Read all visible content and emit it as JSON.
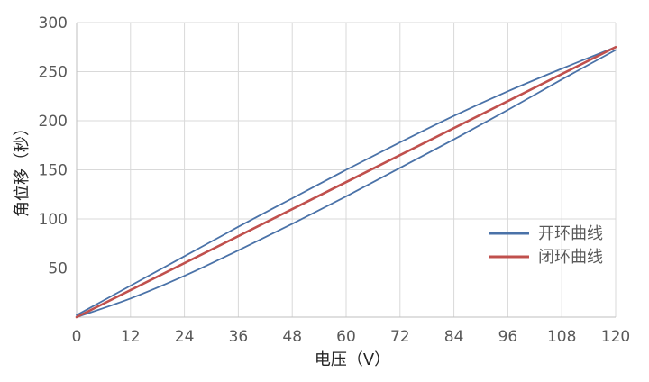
{
  "chart_data": {
    "type": "line",
    "xlabel": "电压（V）",
    "ylabel": "角位移（秒）",
    "xlim": [
      0,
      120
    ],
    "ylim": [
      0,
      300
    ],
    "xticks": [
      0,
      12,
      24,
      36,
      48,
      60,
      72,
      84,
      96,
      108,
      120
    ],
    "yticks": [
      50,
      100,
      150,
      200,
      250,
      300
    ],
    "grid": true,
    "legend_position": "right",
    "series": [
      {
        "name": "开环曲线",
        "color": "#4a72a8",
        "branch": "upper",
        "x": [
          0,
          12,
          24,
          36,
          48,
          60,
          72,
          84,
          96,
          108,
          120
        ],
        "y": [
          2,
          32,
          62,
          92,
          121,
          150,
          178,
          205,
          230,
          253,
          275
        ]
      },
      {
        "name": "开环曲线",
        "color": "#4a72a8",
        "branch": "lower",
        "x": [
          0,
          12,
          24,
          36,
          48,
          60,
          72,
          84,
          96,
          108,
          120
        ],
        "y": [
          0,
          19,
          42,
          68,
          95,
          123,
          152,
          181,
          211,
          242,
          272
        ]
      },
      {
        "name": "闭环曲线",
        "color": "#c0504d",
        "x": [
          0,
          120
        ],
        "y": [
          0,
          275
        ]
      }
    ],
    "legend": [
      {
        "name": "开环曲线",
        "color": "#4a72a8"
      },
      {
        "name": "闭环曲线",
        "color": "#c0504d"
      }
    ]
  }
}
